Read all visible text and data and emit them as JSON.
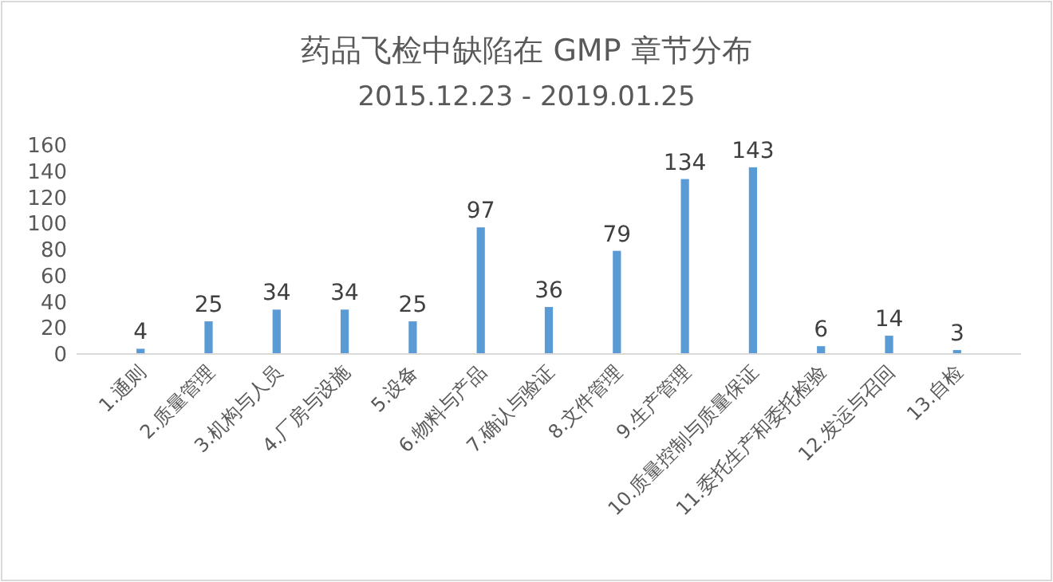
{
  "chart_data": {
    "type": "bar",
    "title": "药品飞检中缺陷在 GMP 章节分布",
    "subtitle": "2015.12.23 - 2019.01.25",
    "categories": [
      "1.通则",
      "2.质量管理",
      "3.机构与人员",
      "4.厂房与设施",
      "5.设备",
      "6.物料与产品",
      "7.确认与验证",
      "8.文件管理",
      "9.生产管理",
      "10.质量控制与质量保证",
      "11.委托生产和委托检验",
      "12.发运与召回",
      "13.自检"
    ],
    "values": [
      4,
      25,
      34,
      34,
      25,
      97,
      36,
      79,
      134,
      143,
      6,
      14,
      3
    ],
    "color": "#5b9bd5",
    "ylim": [
      0,
      160
    ],
    "yticks": [
      0,
      20,
      40,
      60,
      80,
      100,
      120,
      140,
      160
    ],
    "data_labels": true,
    "grid": false,
    "legend": false
  }
}
